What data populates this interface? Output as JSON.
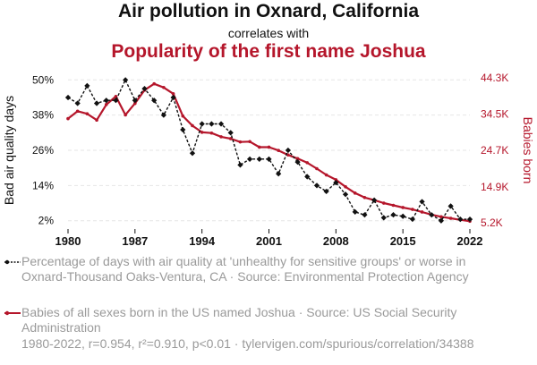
{
  "titles": {
    "main": "Air pollution in Oxnard, California",
    "connector": "correlates with",
    "secondary": "Popularity of the first name Joshua"
  },
  "colors": {
    "series1": "#111111",
    "series2": "#b5162b",
    "grid": "#e6e6e6",
    "muted": "#9a9a9a"
  },
  "legend": {
    "series1": "Percentage of days with air quality at 'unhealthy for sensitive groups' or worse in Oxnard-Thousand Oaks-Ventura, CA · Source: Environmental Protection Agency",
    "series2": "Babies of all sexes born in the US named Joshua · Source: US Social Security Administration"
  },
  "footer": "1980-2022, r=0.954, r²=0.910, p<0.01 · tylervigen.com/spurious/correlation/34388",
  "chart_data": {
    "type": "line",
    "x": [
      1980,
      1981,
      1982,
      1983,
      1984,
      1985,
      1986,
      1987,
      1988,
      1989,
      1990,
      1991,
      1992,
      1993,
      1994,
      1995,
      1996,
      1997,
      1998,
      1999,
      2000,
      2001,
      2002,
      2003,
      2004,
      2005,
      2006,
      2007,
      2008,
      2009,
      2010,
      2011,
      2012,
      2013,
      2014,
      2015,
      2016,
      2017,
      2018,
      2019,
      2020,
      2021,
      2022
    ],
    "xticks": [
      "1980",
      "1987",
      "1994",
      "2001",
      "2008",
      "2015",
      "2022"
    ],
    "xlim": [
      1980,
      2022
    ],
    "series": [
      {
        "axis": "left",
        "color": "#111111",
        "values": [
          44,
          42,
          48,
          42,
          43,
          43,
          50,
          43,
          47,
          43,
          38,
          44,
          33,
          25,
          35,
          35,
          35,
          32,
          21,
          23,
          23,
          23,
          18,
          26,
          22,
          17,
          14,
          12,
          15,
          11,
          5,
          4,
          9,
          3,
          4,
          3.5,
          2.5,
          8.5,
          4,
          2,
          7,
          2.5,
          2.5
        ]
      },
      {
        "axis": "right",
        "color": "#b5162b",
        "values": [
          33300,
          35300,
          34600,
          32900,
          37100,
          39300,
          34300,
          37400,
          41000,
          42700,
          41700,
          40000,
          34000,
          31400,
          29600,
          29400,
          28400,
          27900,
          27000,
          27100,
          25600,
          25600,
          24700,
          23500,
          22500,
          21400,
          19800,
          18100,
          16800,
          14900,
          13200,
          12000,
          11300,
          10500,
          9900,
          9300,
          8800,
          8100,
          7400,
          6800,
          6400,
          6000,
          5600
        ]
      }
    ],
    "y_left": {
      "label": "Bad air quality days",
      "ticks": [
        "2%",
        "14%",
        "26%",
        "38%",
        "50%"
      ],
      "tick_values": [
        2,
        14,
        26,
        38,
        50
      ],
      "ylim": [
        1,
        51
      ]
    },
    "y_right": {
      "label": "Babies born",
      "ticks": [
        "5.2K",
        "14.9K",
        "24.7K",
        "34.5K",
        "44.3K"
      ],
      "tick_values": [
        5200,
        14900,
        24700,
        34500,
        44300
      ],
      "ylim": [
        4950,
        44550
      ]
    },
    "grid": true
  }
}
